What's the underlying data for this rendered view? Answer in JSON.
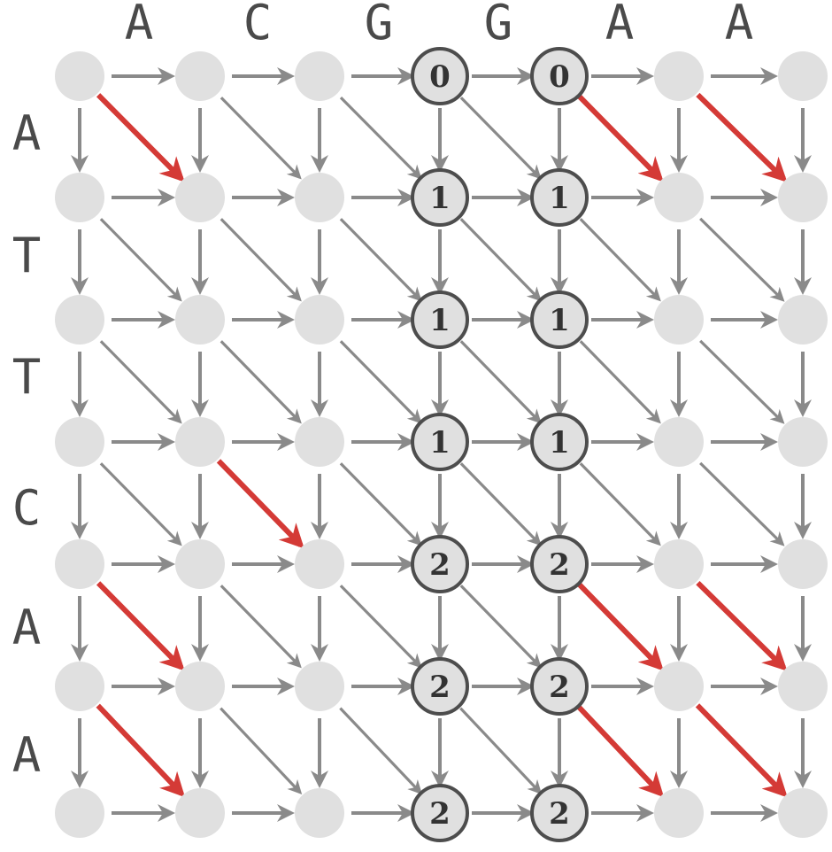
{
  "top_sequence": [
    "A",
    "C",
    "G",
    "G",
    "A",
    "A"
  ],
  "left_sequence": [
    "A",
    "T",
    "T",
    "C",
    "A",
    "A"
  ],
  "scored_nodes": [
    {
      "row": 0,
      "col": 3,
      "value": "0"
    },
    {
      "row": 0,
      "col": 4,
      "value": "0"
    },
    {
      "row": 1,
      "col": 3,
      "value": "1"
    },
    {
      "row": 1,
      "col": 4,
      "value": "1"
    },
    {
      "row": 2,
      "col": 3,
      "value": "1"
    },
    {
      "row": 2,
      "col": 4,
      "value": "1"
    },
    {
      "row": 3,
      "col": 3,
      "value": "1"
    },
    {
      "row": 3,
      "col": 4,
      "value": "1"
    },
    {
      "row": 4,
      "col": 3,
      "value": "2"
    },
    {
      "row": 4,
      "col": 4,
      "value": "2"
    },
    {
      "row": 5,
      "col": 3,
      "value": "2"
    },
    {
      "row": 5,
      "col": 4,
      "value": "2"
    },
    {
      "row": 6,
      "col": 3,
      "value": "2"
    },
    {
      "row": 6,
      "col": 4,
      "value": "2"
    }
  ],
  "match_edges": [
    {
      "row": 0,
      "col": 0
    },
    {
      "row": 0,
      "col": 4
    },
    {
      "row": 0,
      "col": 5
    },
    {
      "row": 3,
      "col": 1
    },
    {
      "row": 4,
      "col": 0
    },
    {
      "row": 4,
      "col": 4
    },
    {
      "row": 4,
      "col": 5
    },
    {
      "row": 5,
      "col": 0
    },
    {
      "row": 5,
      "col": 4
    },
    {
      "row": 5,
      "col": 5
    }
  ],
  "colors": {
    "node_fill": "#e0e0e0",
    "node_outline": "#4d4d4d",
    "edge": "#8a8a8a",
    "match_edge": "#d43a36",
    "letter": "#4a4a4a",
    "score_text": "#333333"
  }
}
